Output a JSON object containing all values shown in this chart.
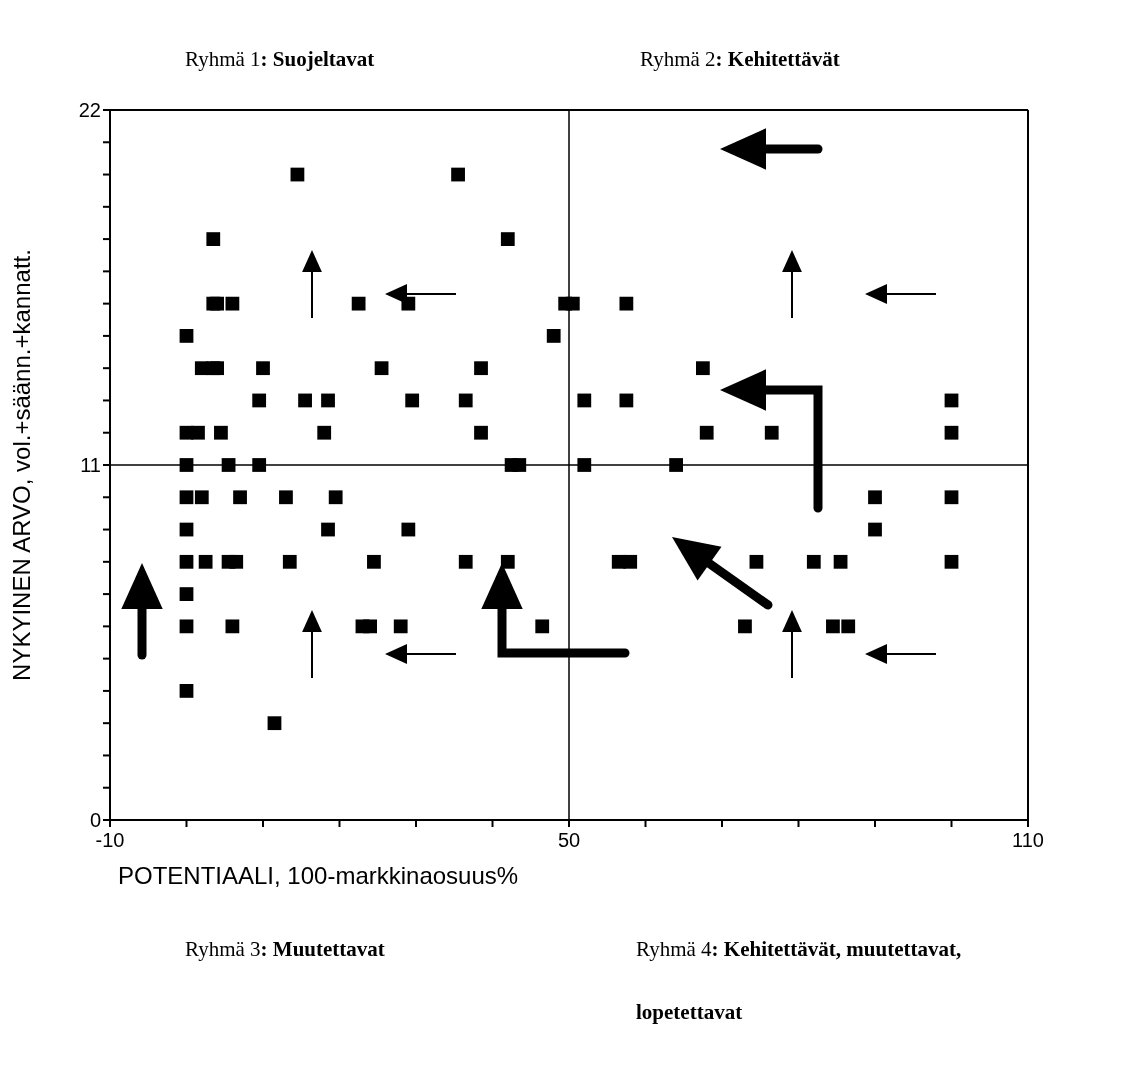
{
  "chart_data": {
    "type": "scatter",
    "xlabel": "POTENTIAALI, 100-markkinaosuus%",
    "ylabel": "NYKYINEN ARVO, vol.+säänn.+kannatt.",
    "annotations": [
      "Ryhmä 1: Suojeltavat",
      "Ryhmä 2: Kehitettävät",
      "Ryhmä 3: Muutettavat",
      "Ryhmä 4: Kehitettävät, muutettavat, lopetettavat"
    ],
    "series": [
      {
        "color": "#000000",
        "x": [
          14.5,
          35.5,
          3.5,
          42,
          3.5,
          4,
          6,
          22.5,
          29,
          49.5,
          50.5,
          57.5,
          0,
          48,
          2,
          3.5,
          4,
          10,
          25.5,
          38.5,
          67.5,
          9.5,
          15.5,
          18.5,
          29.5,
          36.5,
          52,
          57.5,
          100,
          0,
          1.5,
          4.5,
          18,
          38.5,
          68,
          76.5,
          100,
          0,
          5.5,
          9.5,
          42.5,
          43.5,
          52,
          64,
          0,
          2,
          7,
          13,
          19.5,
          90,
          100,
          0,
          18.5,
          29,
          90,
          0,
          2.5,
          5.5,
          6.5,
          13.5,
          24.5,
          36.5,
          42,
          56.5,
          58,
          74.5,
          82,
          85.5,
          100,
          0,
          0,
          6,
          23,
          24,
          28,
          46.5,
          73,
          84.5,
          86.5,
          0,
          11.5
        ],
        "values": [
          20,
          20,
          18,
          18,
          16,
          16,
          16,
          16,
          16,
          16,
          16,
          16,
          15,
          15,
          14,
          14,
          14,
          14,
          14,
          14,
          14,
          13,
          13,
          13,
          13,
          13,
          13,
          13,
          13,
          12,
          12,
          12,
          12,
          12,
          12,
          12,
          12,
          11,
          11,
          11,
          11,
          11,
          11,
          11,
          10,
          10,
          10,
          10,
          10,
          10,
          10,
          9,
          9,
          9,
          9,
          8,
          8,
          8,
          8,
          8,
          8,
          8,
          8,
          8,
          8,
          8,
          8,
          8,
          8,
          7,
          6,
          6,
          6,
          6,
          6,
          6,
          6,
          6,
          6,
          4,
          3
        ]
      }
    ],
    "marker": "square",
    "xlim": [
      -10,
      110
    ],
    "xticks": [
      -10,
      {
        "value": 0,
        "label": null
      },
      {
        "value": 10,
        "label": null
      },
      {
        "value": 20,
        "label": null
      },
      {
        "value": 30,
        "label": null
      },
      {
        "value": 40,
        "label": null
      },
      50,
      {
        "value": 60,
        "label": null
      },
      {
        "value": 70,
        "label": null
      },
      {
        "value": 80,
        "label": null
      },
      {
        "value": 90,
        "label": null
      },
      {
        "value": 100,
        "label": null
      },
      110
    ],
    "ylim": [
      0,
      22
    ],
    "yticks": [
      0,
      {
        "value": 1,
        "label": null
      },
      {
        "value": 2,
        "label": null
      },
      {
        "value": 3,
        "label": null
      },
      {
        "value": 4,
        "label": null
      },
      {
        "value": 5,
        "label": null
      },
      {
        "value": 6,
        "label": null
      },
      {
        "value": 7,
        "label": null
      },
      {
        "value": 8,
        "label": null
      },
      {
        "value": 9,
        "label": null
      },
      {
        "value": 10,
        "label": null
      },
      11,
      {
        "value": 12,
        "label": null
      },
      {
        "value": 13,
        "label": null
      },
      {
        "value": 14,
        "label": null
      },
      {
        "value": 15,
        "label": null
      },
      {
        "value": 16,
        "label": null
      },
      {
        "value": 17,
        "label": null
      },
      {
        "value": 18,
        "label": null
      },
      {
        "value": 19,
        "label": null
      },
      {
        "value": 20,
        "label": null
      },
      {
        "value": 21,
        "label": null
      },
      22
    ],
    "ref_lines": [
      {
        "axis": "x",
        "value": 50
      },
      {
        "axis": "y",
        "value": 11
      }
    ]
  }
}
